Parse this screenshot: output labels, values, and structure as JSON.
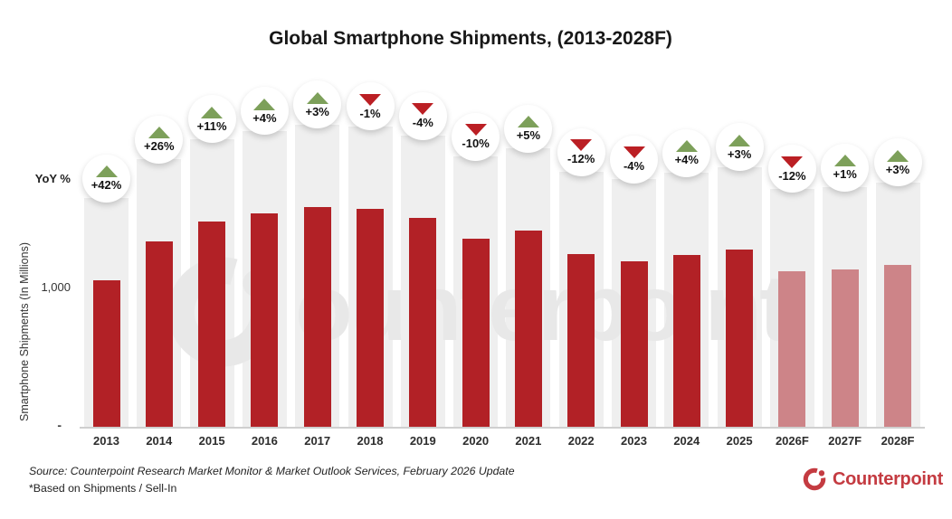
{
  "header": {
    "title": "Global Smartphone Shipments, (2013-2028F)"
  },
  "axes": {
    "y_label": "Smartphone Shipments (In Millions)",
    "yoy_axis_label": "YoY %",
    "y_tick_1000": "1,000",
    "y_tick_zero": "-"
  },
  "chart_data": {
    "type": "bar",
    "title": "Global Smartphone Shipments, (2013-2028F)",
    "xlabel": "",
    "ylabel": "Smartphone Shipments (In Millions)",
    "unit": "millions of units",
    "ylim": [
      0,
      1800
    ],
    "y_ticks_labeled": [
      {
        "value": 0,
        "label": "-"
      },
      {
        "value": 1000,
        "label": "1,000"
      }
    ],
    "grid": "off",
    "categories": [
      "2013",
      "2014",
      "2015",
      "2016",
      "2017",
      "2018",
      "2019",
      "2020",
      "2021",
      "2022",
      "2023",
      "2024",
      "2025",
      "2026F",
      "2027F",
      "2028F"
    ],
    "series": [
      {
        "name": "Smartphone Shipments (In Millions)",
        "values": [
          1045,
          1320,
          1465,
          1525,
          1570,
          1555,
          1490,
          1340,
          1400,
          1230,
          1180,
          1225,
          1265,
          1110,
          1120,
          1155
        ]
      }
    ],
    "yoy_labels": [
      "+42%",
      "+26%",
      "+11%",
      "+4%",
      "+3%",
      "-1%",
      "-4%",
      "-10%",
      "+5%",
      "-12%",
      "-4%",
      "+4%",
      "+3%",
      "-12%",
      "+1%",
      "+3%"
    ],
    "yoy_directions": [
      "up",
      "up",
      "up",
      "up",
      "up",
      "down",
      "down",
      "down",
      "up",
      "down",
      "down",
      "up",
      "up",
      "down",
      "up",
      "up"
    ],
    "is_forecast": [
      false,
      false,
      false,
      false,
      false,
      false,
      false,
      false,
      false,
      false,
      false,
      false,
      false,
      true,
      true,
      true
    ]
  },
  "watermark": {
    "text_tail": "ounterpoint",
    "full_text": "Counterpoint"
  },
  "footer": {
    "source": "Source: Counterpoint Research Market Monitor & Market Outlook Services, February 2026 Update",
    "note": "*Based on Shipments / Sell-In"
  },
  "logo": {
    "text": "Counterpoint"
  },
  "colors": {
    "bar": "#b22126",
    "bar_forecast": "#cd8488",
    "track": "#efefef",
    "watermark": "#e8e8e8",
    "triangle_up": "#7da05a",
    "triangle_down": "#bb1f24",
    "logo_red": "#c43b41"
  }
}
